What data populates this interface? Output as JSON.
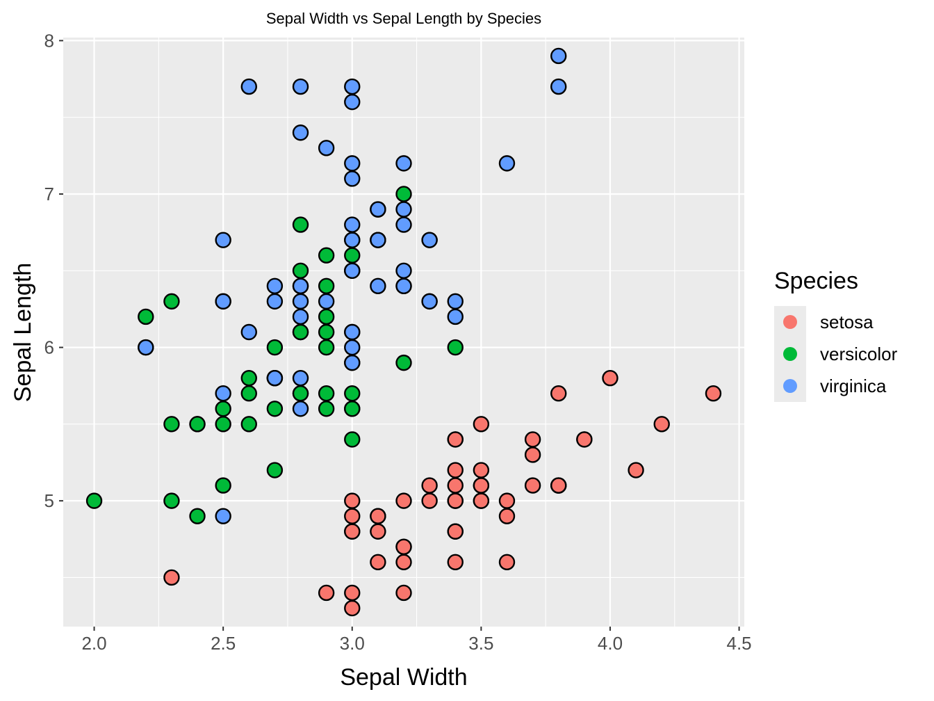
{
  "chart_data": {
    "type": "scatter",
    "title": "Sepal Width vs Sepal Length by Species",
    "xlabel": "Sepal Width",
    "ylabel": "Sepal Length",
    "xlim": [
      1.88,
      4.52
    ],
    "ylim": [
      4.18,
      8.02
    ],
    "x_ticks": [
      2.0,
      2.5,
      3.0,
      3.5,
      4.0,
      4.5
    ],
    "x_tick_labels": [
      "2.0",
      "2.5",
      "3.0",
      "3.5",
      "4.0",
      "4.5"
    ],
    "y_ticks": [
      5,
      6,
      7,
      8
    ],
    "y_tick_labels": [
      "5",
      "6",
      "7",
      "8"
    ],
    "grid": true,
    "panel_background": "#ebebeb",
    "legend": {
      "title": "Species",
      "position": "right"
    },
    "series": [
      {
        "name": "setosa",
        "color": "#F8766D",
        "points": [
          [
            3.5,
            5.1
          ],
          [
            3.0,
            4.9
          ],
          [
            3.2,
            4.7
          ],
          [
            3.1,
            4.6
          ],
          [
            3.6,
            5.0
          ],
          [
            3.9,
            5.4
          ],
          [
            3.4,
            4.6
          ],
          [
            3.4,
            5.0
          ],
          [
            2.9,
            4.4
          ],
          [
            3.1,
            4.9
          ],
          [
            3.7,
            5.4
          ],
          [
            3.4,
            4.8
          ],
          [
            3.0,
            4.8
          ],
          [
            3.0,
            4.3
          ],
          [
            4.0,
            5.8
          ],
          [
            4.4,
            5.7
          ],
          [
            3.9,
            5.4
          ],
          [
            3.5,
            5.1
          ],
          [
            3.8,
            5.7
          ],
          [
            3.8,
            5.1
          ],
          [
            3.4,
            5.4
          ],
          [
            3.7,
            5.1
          ],
          [
            3.6,
            4.6
          ],
          [
            3.3,
            5.1
          ],
          [
            3.4,
            4.8
          ],
          [
            3.0,
            5.0
          ],
          [
            3.4,
            5.0
          ],
          [
            3.5,
            5.2
          ],
          [
            3.4,
            5.2
          ],
          [
            3.2,
            4.7
          ],
          [
            3.1,
            4.8
          ],
          [
            3.4,
            5.4
          ],
          [
            4.1,
            5.2
          ],
          [
            4.2,
            5.5
          ],
          [
            3.1,
            4.9
          ],
          [
            3.2,
            5.0
          ],
          [
            3.5,
            5.5
          ],
          [
            3.6,
            4.9
          ],
          [
            3.0,
            4.4
          ],
          [
            3.4,
            5.1
          ],
          [
            3.5,
            5.0
          ],
          [
            2.3,
            4.5
          ],
          [
            3.2,
            4.4
          ],
          [
            3.5,
            5.0
          ],
          [
            3.8,
            5.1
          ],
          [
            3.0,
            4.8
          ],
          [
            3.8,
            5.1
          ],
          [
            3.2,
            4.6
          ],
          [
            3.7,
            5.3
          ],
          [
            3.3,
            5.0
          ]
        ]
      },
      {
        "name": "versicolor",
        "color": "#00BA38",
        "points": [
          [
            3.2,
            7.0
          ],
          [
            3.2,
            6.4
          ],
          [
            3.1,
            6.9
          ],
          [
            2.3,
            5.5
          ],
          [
            2.8,
            6.5
          ],
          [
            2.8,
            5.7
          ],
          [
            3.3,
            6.3
          ],
          [
            2.4,
            4.9
          ],
          [
            2.9,
            6.6
          ],
          [
            2.7,
            5.2
          ],
          [
            2.0,
            5.0
          ],
          [
            3.0,
            5.9
          ],
          [
            2.2,
            6.0
          ],
          [
            2.9,
            6.1
          ],
          [
            2.9,
            5.6
          ],
          [
            3.1,
            6.7
          ],
          [
            3.0,
            5.6
          ],
          [
            2.7,
            5.8
          ],
          [
            2.2,
            6.2
          ],
          [
            2.5,
            5.6
          ],
          [
            3.2,
            5.9
          ],
          [
            2.8,
            6.1
          ],
          [
            2.5,
            6.3
          ],
          [
            2.8,
            6.1
          ],
          [
            2.9,
            6.4
          ],
          [
            3.0,
            6.6
          ],
          [
            2.8,
            6.8
          ],
          [
            3.0,
            6.7
          ],
          [
            2.9,
            6.0
          ],
          [
            2.6,
            5.7
          ],
          [
            2.4,
            5.5
          ],
          [
            2.4,
            5.5
          ],
          [
            2.7,
            5.8
          ],
          [
            2.7,
            6.0
          ],
          [
            3.0,
            5.4
          ],
          [
            3.4,
            6.0
          ],
          [
            3.1,
            6.7
          ],
          [
            2.3,
            6.3
          ],
          [
            3.0,
            5.6
          ],
          [
            2.5,
            5.5
          ],
          [
            2.6,
            5.5
          ],
          [
            3.0,
            6.1
          ],
          [
            2.6,
            5.8
          ],
          [
            2.3,
            5.0
          ],
          [
            2.7,
            5.6
          ],
          [
            3.0,
            5.7
          ],
          [
            2.9,
            5.7
          ],
          [
            2.9,
            6.2
          ],
          [
            2.5,
            5.1
          ],
          [
            2.8,
            5.7
          ]
        ]
      },
      {
        "name": "virginica",
        "color": "#619CFF",
        "points": [
          [
            3.3,
            6.3
          ],
          [
            2.7,
            5.8
          ],
          [
            3.0,
            7.1
          ],
          [
            2.9,
            6.3
          ],
          [
            3.0,
            6.5
          ],
          [
            3.0,
            7.6
          ],
          [
            2.5,
            4.9
          ],
          [
            2.9,
            7.3
          ],
          [
            2.5,
            6.7
          ],
          [
            3.6,
            7.2
          ],
          [
            3.2,
            6.5
          ],
          [
            2.7,
            6.4
          ],
          [
            3.0,
            6.8
          ],
          [
            2.5,
            5.7
          ],
          [
            2.8,
            5.8
          ],
          [
            3.2,
            6.4
          ],
          [
            3.0,
            6.5
          ],
          [
            3.8,
            7.7
          ],
          [
            2.6,
            7.7
          ],
          [
            2.2,
            6.0
          ],
          [
            3.2,
            6.9
          ],
          [
            2.8,
            5.6
          ],
          [
            2.8,
            7.7
          ],
          [
            2.7,
            6.3
          ],
          [
            3.3,
            6.7
          ],
          [
            3.2,
            7.2
          ],
          [
            2.8,
            6.2
          ],
          [
            3.0,
            6.1
          ],
          [
            2.8,
            6.4
          ],
          [
            3.0,
            7.2
          ],
          [
            2.8,
            7.4
          ],
          [
            3.8,
            7.9
          ],
          [
            2.8,
            6.4
          ],
          [
            2.8,
            6.3
          ],
          [
            2.6,
            6.1
          ],
          [
            3.0,
            7.7
          ],
          [
            3.4,
            6.3
          ],
          [
            3.1,
            6.4
          ],
          [
            3.0,
            6.0
          ],
          [
            3.1,
            6.9
          ],
          [
            3.1,
            6.7
          ],
          [
            3.1,
            6.9
          ],
          [
            2.7,
            5.8
          ],
          [
            3.2,
            6.8
          ],
          [
            3.3,
            6.7
          ],
          [
            3.0,
            6.7
          ],
          [
            2.5,
            6.3
          ],
          [
            3.0,
            6.5
          ],
          [
            3.4,
            6.2
          ],
          [
            3.0,
            5.9
          ]
        ]
      }
    ]
  }
}
